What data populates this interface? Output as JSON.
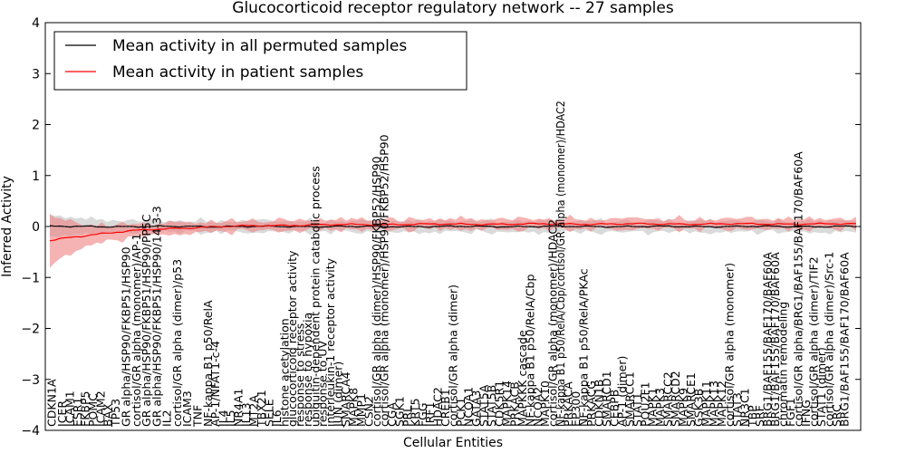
{
  "chart_data": {
    "type": "line",
    "title": "Glucocorticoid receptor regulatory network -- 27 samples",
    "xlabel": "Cellular Entities",
    "ylabel": "Inferred Activity",
    "ylim": [
      -4,
      4
    ],
    "yticks": [
      -4,
      -3,
      -2,
      -1,
      0,
      1,
      2,
      3,
      4
    ],
    "ytick_labels": [
      "−4",
      "−3",
      "−2",
      "−1",
      "0",
      "1",
      "2",
      "3",
      "4"
    ],
    "grid": false,
    "legend_position": "top-left",
    "n_entities": 156,
    "series": [
      {
        "name": "Mean activity in all permuted samples",
        "color": "#000000",
        "band_color": "#bbbbbb",
        "mean_value": 0.0,
        "band_halfwidth": 0.15,
        "initial_band_halfwidth": 0.28
      },
      {
        "name": "Mean activity in patient samples",
        "color": "#ff0000",
        "band_color": "#f08080",
        "start_value": -0.28,
        "end_value": 0.05,
        "band_halfwidth": 0.15,
        "initial_band_halfwidth": 0.55
      }
    ],
    "low_labels": [
      {
        "pos": 2,
        "text": "CDKN1A"
      },
      {
        "pos": 6,
        "text": "ICER"
      },
      {
        "pos": 9,
        "text": "ICAM1"
      },
      {
        "pos": 12,
        "text": "ESR1"
      },
      {
        "pos": 15,
        "text": "FKBP5"
      },
      {
        "pos": 18,
        "text": "POMC"
      },
      {
        "pos": 21,
        "text": "ICAM2"
      },
      {
        "pos": 24,
        "text": "BAX"
      },
      {
        "pos": 27,
        "text": "TP53"
      },
      {
        "pos": 31,
        "text": "GR alpha/HSP90/FKBP51/HSP90"
      },
      {
        "pos": 35,
        "text": "cortisol/GR alpha (monomer)/AP-1"
      },
      {
        "pos": 39,
        "text": "GR alpha/HSP90/FKBP51/HSP90/PP5C"
      },
      {
        "pos": 43,
        "text": "GR alpha/HSP90/FKBP51/HSP90/14-3-3"
      },
      {
        "pos": 47,
        "text": "IL2"
      },
      {
        "pos": 51,
        "text": "cortisol/GR alpha (dimer)/p53"
      },
      {
        "pos": 55,
        "text": "ICAM3"
      },
      {
        "pos": 59,
        "text": "TNF"
      },
      {
        "pos": 63,
        "text": "NF-kappa B1 p50/RelA"
      },
      {
        "pos": 66,
        "text": "AP-1/NFAT1-c-4"
      },
      {
        "pos": 69,
        "text": "IL4"
      },
      {
        "pos": 72,
        "text": "IL5"
      },
      {
        "pos": 75,
        "text": "NR4A1"
      },
      {
        "pos": 78,
        "text": "IL13"
      },
      {
        "pos": 81,
        "text": "MT2A"
      },
      {
        "pos": 84,
        "text": "TBX21"
      },
      {
        "pos": 87,
        "text": "SELE"
      },
      {
        "pos": 90,
        "text": "IL6"
      },
      {
        "pos": 93,
        "text": "histone acetylation"
      },
      {
        "pos": 96,
        "text": "glucocorticoid receptor activity"
      },
      {
        "pos": 99,
        "text": "response to stress"
      },
      {
        "pos": 102,
        "text": "response to hypoxia"
      },
      {
        "pos": 105,
        "text": "ubiquitin-dependent protein catabolic process"
      },
      {
        "pos": 108,
        "text": "response to UV"
      },
      {
        "pos": 111,
        "text": "interleukin-1 receptor activity"
      },
      {
        "pos": 114,
        "text": "JUN (dimer)"
      },
      {
        "pos": 117,
        "text": "SMARCA4"
      },
      {
        "pos": 120,
        "text": "MAPK8"
      },
      {
        "pos": 123,
        "text": "MMP1"
      },
      {
        "pos": 126,
        "text": "CSN2"
      },
      {
        "pos": 129,
        "text": "cortisol/GR alpha (dimer)/HSP90/FKBP52/HSP90"
      },
      {
        "pos": 132,
        "text": "cortisol/GR alpha (monomer)/HSP90/FKBP52/HSP90"
      },
      {
        "pos": 135,
        "text": "CGA"
      },
      {
        "pos": 138,
        "text": "SGK1"
      },
      {
        "pos": 141,
        "text": "PRL"
      },
      {
        "pos": 144,
        "text": "KRT5"
      },
      {
        "pos": 147,
        "text": "FGG"
      },
      {
        "pos": 150,
        "text": "IRF1"
      },
      {
        "pos": 153,
        "text": "HDAC2"
      },
      {
        "pos": 156,
        "text": "CREB1"
      },
      {
        "pos": 159,
        "text": "cortisol/GR alpha (dimer)"
      },
      {
        "pos": 162,
        "text": "PCK1"
      },
      {
        "pos": 165,
        "text": "NCOA1"
      },
      {
        "pos": 168,
        "text": "GATA3"
      },
      {
        "pos": 171,
        "text": "STAT5A"
      },
      {
        "pos": 174,
        "text": "STAT5B"
      },
      {
        "pos": 177,
        "text": "CDK5R1"
      },
      {
        "pos": 180,
        "text": "MAPK14"
      },
      {
        "pos": 183,
        "text": "PRKACB"
      },
      {
        "pos": 186,
        "text": "MAPKKK cascade"
      },
      {
        "pos": 189,
        "text": "NF-kappa B1 p50/RelA/Cbp"
      },
      {
        "pos": 192,
        "text": "NCOA2"
      },
      {
        "pos": 195,
        "text": "MAPK10"
      },
      {
        "pos": 198,
        "text": "cortisol/GR alpha (monomer)/HDAC2"
      },
      {
        "pos": 201,
        "text": "NF-kappa B1 p50/RelA/Cbp/cortisol/GR alpha (monomer)/HDAC2"
      },
      {
        "pos": 204,
        "text": "PRKACA"
      },
      {
        "pos": 207,
        "text": "EP300"
      },
      {
        "pos": 210,
        "text": "NF-kappa B1 p50/RelA/PKAc"
      },
      {
        "pos": 213,
        "text": "PRKACG"
      },
      {
        "pos": 216,
        "text": "CDKN1B"
      },
      {
        "pos": 219,
        "text": "SMARCD1"
      },
      {
        "pos": 222,
        "text": "CEBPB"
      },
      {
        "pos": 225,
        "text": "AP-1 (dimer)"
      },
      {
        "pos": 228,
        "text": "SMARCC1"
      },
      {
        "pos": 231,
        "text": "STAT1"
      },
      {
        "pos": 234,
        "text": "POU2F1"
      },
      {
        "pos": 237,
        "text": "MAPK1"
      },
      {
        "pos": 240,
        "text": "MAPK3"
      },
      {
        "pos": 243,
        "text": "SMARCC2"
      },
      {
        "pos": 246,
        "text": "SMARCD2"
      },
      {
        "pos": 249,
        "text": "MAPK9"
      },
      {
        "pos": 252,
        "text": "SMARCE1"
      },
      {
        "pos": 255,
        "text": "GSK3B"
      },
      {
        "pos": 258,
        "text": "MAPK11"
      },
      {
        "pos": 261,
        "text": "MAPK13"
      },
      {
        "pos": 264,
        "text": "MAPK12"
      },
      {
        "pos": 267,
        "text": "cortisol/GR alpha (monomer)"
      },
      {
        "pos": 270,
        "text": "STAT3"
      },
      {
        "pos": 273,
        "text": "NR3C1"
      },
      {
        "pos": 276,
        "text": "TBP"
      },
      {
        "pos": 279,
        "text": "SRF"
      },
      {
        "pos": 282,
        "text": "BRG1/BAF155/BAF170/BAF60A"
      },
      {
        "pos": 285,
        "text": "BRG1/BAF155/BAF170/BAF60A"
      },
      {
        "pos": 288,
        "text": "chromatin remodeling"
      },
      {
        "pos": 291,
        "text": "FGF1"
      },
      {
        "pos": 294,
        "text": "cortisol/GR alpha/BRG1/BAF155/BAF170/BAF60A"
      },
      {
        "pos": 297,
        "text": "IFNG"
      },
      {
        "pos": 300,
        "text": "cortisol/GR alpha (dimer)/TIF2"
      },
      {
        "pos": 303,
        "text": "STAT1 (dimer)"
      },
      {
        "pos": 306,
        "text": "cortisol/GR alpha (dimer)/Src-1"
      },
      {
        "pos": 309,
        "text": "SRC"
      },
      {
        "pos": 312,
        "text": "BRG1/BAF155/BAF170/BAF60A"
      }
    ],
    "mid_labels": [
      {
        "pos": 15,
        "text": "CDKN1A"
      }
    ]
  }
}
